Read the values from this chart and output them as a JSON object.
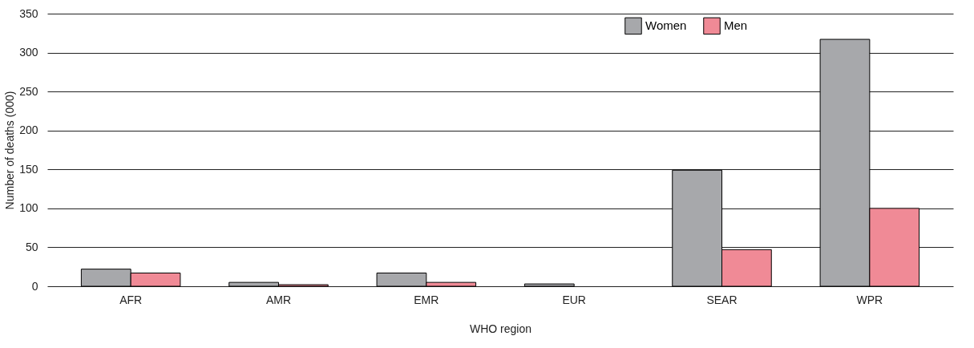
{
  "chart_data": {
    "type": "bar",
    "xlabel": "WHO region",
    "ylabel": "Number of deaths (000)",
    "categories": [
      "AFR",
      "AMR",
      "EMR",
      "EUR",
      "SEAR",
      "WPR"
    ],
    "series": [
      {
        "name": "Women",
        "color": "#a7a8ab",
        "values": [
          22,
          5,
          17,
          3,
          149,
          317
        ]
      },
      {
        "name": "Men",
        "color": "#f08a96",
        "values": [
          17,
          2,
          5,
          null,
          47,
          100
        ]
      }
    ],
    "ylim": [
      0,
      350
    ],
    "yticks": [
      0,
      50,
      100,
      150,
      200,
      250,
      300,
      350
    ],
    "grid": "y",
    "legend": "top right"
  }
}
